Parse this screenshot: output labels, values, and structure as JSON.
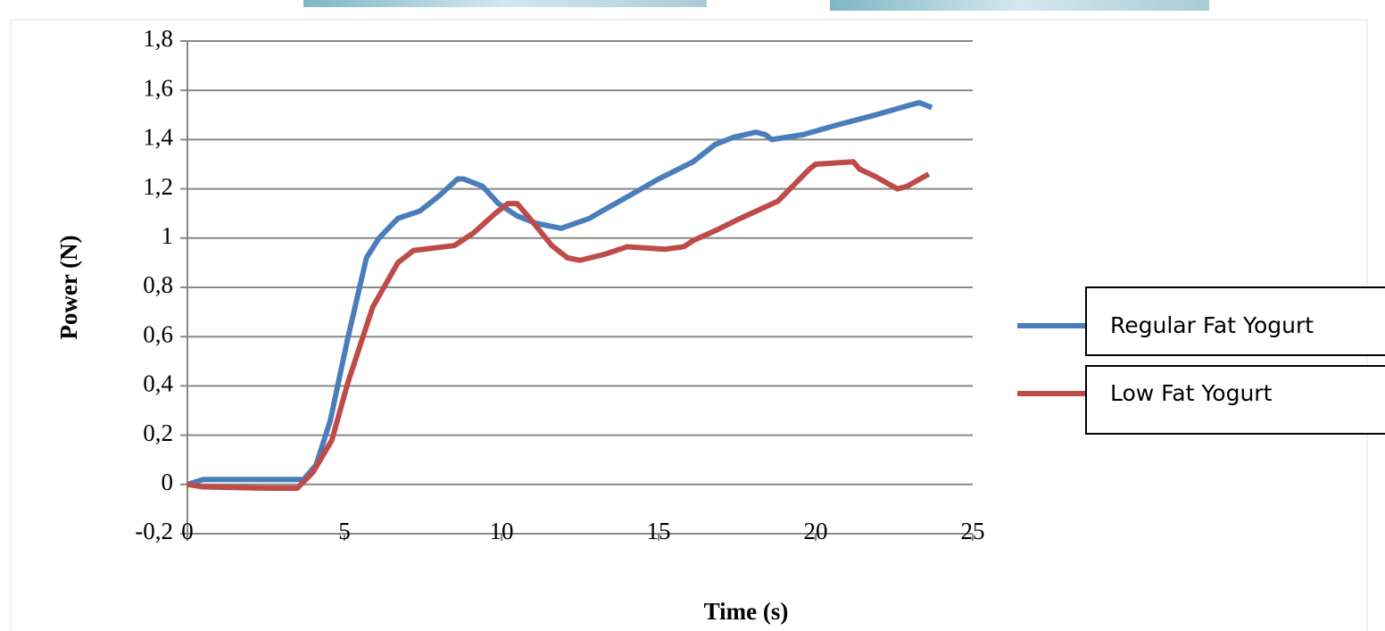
{
  "chart_data": {
    "type": "line",
    "xlabel": "Time (s)",
    "ylabel": "Power (N)",
    "xlim": [
      0,
      25
    ],
    "xticks": [
      0,
      5,
      10,
      15,
      20,
      25
    ],
    "ylim": [
      -0.2,
      1.8
    ],
    "yticks": [
      {
        "value": -0.2,
        "label": "-0,2"
      },
      0,
      {
        "value": 0.2,
        "label": "0,2"
      },
      {
        "value": 0.4,
        "label": "0,4"
      },
      {
        "value": 0.6,
        "label": "0,6"
      },
      {
        "value": 0.8,
        "label": "0,8"
      },
      1,
      {
        "value": 1.2,
        "label": "1,2"
      },
      {
        "value": 1.4,
        "label": "1,4"
      },
      {
        "value": 1.6,
        "label": "1,6"
      },
      {
        "value": 1.8,
        "label": "1,8"
      }
    ],
    "grid": true,
    "legend": "right",
    "series": [
      {
        "name": "Regular Fat Yogurt",
        "color": "#4a7ebb",
        "x": [
          0,
          0.5,
          2.56,
          3.7,
          4.1,
          4.55,
          5.1,
          5.7,
          6.1,
          6.7,
          7.4,
          8.0,
          8.6,
          8.8,
          9.4,
          9.9,
          10.5,
          11.1,
          11.9,
          12.8,
          13.2,
          13.9,
          15.0,
          16.1,
          16.8,
          17.4,
          18.1,
          18.4,
          18.6,
          19.6,
          20.7,
          21.9,
          23.0,
          23.3,
          23.7
        ],
        "values": [
          0,
          0.02,
          0.02,
          0.02,
          0.08,
          0.26,
          0.59,
          0.92,
          1.0,
          1.08,
          1.11,
          1.17,
          1.24,
          1.24,
          1.21,
          1.14,
          1.09,
          1.06,
          1.04,
          1.08,
          1.11,
          1.16,
          1.24,
          1.31,
          1.38,
          1.41,
          1.43,
          1.42,
          1.4,
          1.42,
          1.46,
          1.5,
          1.54,
          1.55,
          1.53
        ]
      },
      {
        "name": "Low Fat Yogurt",
        "color": "#be4b48",
        "x": [
          0,
          0.5,
          2.56,
          3.5,
          4.0,
          4.6,
          5.1,
          5.9,
          6.7,
          7.2,
          8.5,
          9.1,
          9.8,
          10.2,
          10.5,
          10.9,
          11.6,
          12.1,
          12.5,
          13.3,
          14.0,
          15.2,
          15.8,
          16.1,
          16.8,
          17.6,
          18.8,
          19.8,
          20.0,
          21.2,
          21.4,
          21.9,
          22.6,
          22.9,
          23.6
        ],
        "values": [
          0,
          -0.01,
          -0.015,
          -0.015,
          0.05,
          0.18,
          0.41,
          0.72,
          0.9,
          0.95,
          0.97,
          1.02,
          1.1,
          1.14,
          1.14,
          1.08,
          0.97,
          0.92,
          0.91,
          0.935,
          0.965,
          0.955,
          0.965,
          0.99,
          1.03,
          1.08,
          1.15,
          1.28,
          1.3,
          1.31,
          1.28,
          1.25,
          1.2,
          1.21,
          1.26
        ]
      }
    ]
  }
}
